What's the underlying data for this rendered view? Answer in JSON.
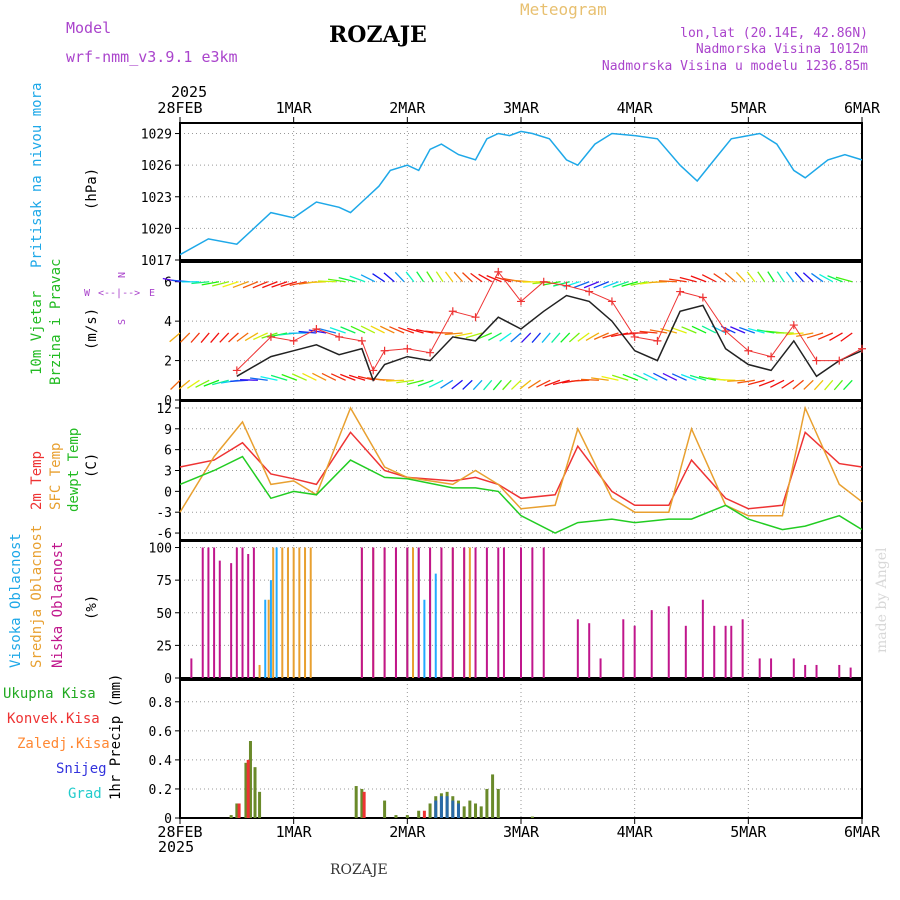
{
  "header": {
    "model_label": "Model",
    "model_name": "wrf-nmm_v3.9.1  e3km",
    "station": "ROZAJE",
    "product": "Meteogram",
    "coords": "lon,lat (20.14E, 42.86N)",
    "elevation": "Nadmorska Visina 1012m",
    "model_elevation": "Nadmorska Visina u modelu 1236.85m",
    "footer_station": "ROZAJE",
    "credit": "made by Angel"
  },
  "colors": {
    "pressure": "#1ea8e8",
    "wind_speed": "#222222",
    "gust": "#ee3333",
    "t2m": "#ee3333",
    "sfc": "#e8a030",
    "dewpt": "#22cc22",
    "cloud_high": "#22aaff",
    "cloud_mid": "#e8a030",
    "cloud_low": "#c0168c",
    "precip_total": "#22aa22",
    "precip_conv": "#ee3333",
    "precip_frz": "#ff8833",
    "precip_snow": "#3333dd",
    "precip_hail": "#22cccc",
    "panel_label_purple": "#aa44cc"
  },
  "time_axis": {
    "year": "2025",
    "labels": [
      "28FEB",
      "1MAR",
      "2MAR",
      "3MAR",
      "4MAR",
      "5MAR",
      "6MAR"
    ],
    "top_year": "2025",
    "top_first": "28FEB",
    "bottom_year": "2025"
  },
  "panels": {
    "pressure": {
      "label": "Pritisak na nivou mora",
      "unit": "(hPa)",
      "ticks": [
        "1017",
        "1020",
        "1023",
        "1026",
        "1029"
      ]
    },
    "wind": {
      "label1": "10m Vjetar",
      "label2": "Brzina i Pravac",
      "unit": "(m/s)",
      "ticks": [
        "0",
        "2",
        "4",
        "6"
      ],
      "compass_w": "W",
      "compass_e": "E",
      "compass_n": "N",
      "compass_s": "S",
      "compass_arrows": "<--|-->"
    },
    "temp": {
      "label1": "2m Temp",
      "label2": "SFC Temp",
      "label3": "dewpt Temp",
      "unit": "(C)",
      "ticks": [
        "-6",
        "-3",
        "0",
        "3",
        "6",
        "9",
        "12"
      ]
    },
    "cloud": {
      "label1": "Visoka Oblacnost",
      "label2": "Srednja Oblacnost",
      "label3": "Niska Oblacnost",
      "unit": "(%)",
      "ticks": [
        "0",
        "25",
        "50",
        "75",
        "100"
      ]
    },
    "precip": {
      "legend": [
        "Ukupna Kisa",
        "Konvek.Kisa",
        "Zaledj.Kisa",
        "Snijeg",
        "Grad"
      ],
      "unit": "1hr Precip (mm)",
      "ticks": [
        "0",
        "0.2",
        "0.4",
        "0.6",
        "0.8"
      ]
    }
  },
  "chart_data": [
    {
      "type": "line",
      "title": "Pritisak na nivou mora",
      "ylabel": "(hPa)",
      "ylim": [
        1017,
        1030
      ],
      "x": [
        0,
        0.25,
        0.5,
        0.7,
        0.8,
        1.0,
        1.2,
        1.4,
        1.5,
        1.6,
        1.75,
        1.85,
        2.0,
        2.1,
        2.2,
        2.3,
        2.45,
        2.6,
        2.7,
        2.8,
        2.9,
        3.0,
        3.1,
        3.25,
        3.4,
        3.5,
        3.65,
        3.8,
        4.0,
        4.2,
        4.4,
        4.55,
        4.7,
        4.85,
        5.0,
        5.1,
        5.25,
        5.4,
        5.5,
        5.7,
        5.85,
        6.0
      ],
      "values": [
        1017.5,
        1019.0,
        1018.5,
        1020.5,
        1021.5,
        1021.0,
        1022.5,
        1022.0,
        1021.5,
        1022.5,
        1024.0,
        1025.5,
        1026.0,
        1025.5,
        1027.5,
        1028.0,
        1027.0,
        1026.5,
        1028.5,
        1029.0,
        1028.8,
        1029.2,
        1029.0,
        1028.5,
        1026.5,
        1026.0,
        1028.0,
        1029.0,
        1028.8,
        1028.5,
        1026.0,
        1024.5,
        1026.5,
        1028.5,
        1028.8,
        1029.0,
        1028.0,
        1025.5,
        1024.8,
        1026.5,
        1027.0,
        1026.5
      ]
    },
    {
      "type": "line",
      "title": "10m Vjetar Brzina i Pravac",
      "ylabel": "(m/s)",
      "ylim": [
        0,
        7
      ],
      "series": [
        {
          "name": "Brzina",
          "x": [
            0.5,
            0.8,
            1.0,
            1.2,
            1.4,
            1.6,
            1.7,
            1.8,
            2.0,
            2.2,
            2.4,
            2.6,
            2.8,
            3.0,
            3.2,
            3.4,
            3.6,
            3.8,
            4.0,
            4.2,
            4.4,
            4.6,
            4.8,
            5.0,
            5.2,
            5.4,
            5.6,
            5.8,
            6.0
          ],
          "values": [
            1.2,
            2.2,
            2.5,
            2.8,
            2.3,
            2.6,
            1.0,
            1.8,
            2.2,
            2.0,
            3.2,
            3.0,
            4.2,
            3.6,
            4.5,
            5.3,
            5.0,
            4.0,
            2.5,
            2.0,
            4.5,
            4.8,
            2.6,
            1.8,
            1.5,
            3.0,
            1.2,
            2.0,
            2.5
          ]
        },
        {
          "name": "Udari",
          "x": [
            0.5,
            0.8,
            1.0,
            1.2,
            1.4,
            1.6,
            1.7,
            1.8,
            2.0,
            2.2,
            2.4,
            2.6,
            2.8,
            3.0,
            3.2,
            3.4,
            3.6,
            3.8,
            4.0,
            4.2,
            4.4,
            4.6,
            4.8,
            5.0,
            5.2,
            5.4,
            5.6,
            5.8,
            6.0
          ],
          "values": [
            1.5,
            3.2,
            3.0,
            3.6,
            3.2,
            3.0,
            1.5,
            2.5,
            2.6,
            2.4,
            4.5,
            4.2,
            6.5,
            5.0,
            6.0,
            5.8,
            5.5,
            5.0,
            3.2,
            3.0,
            5.5,
            5.2,
            3.5,
            2.5,
            2.2,
            3.8,
            2.0,
            2.0,
            2.6
          ]
        }
      ]
    },
    {
      "type": "line",
      "title": "2m Temp / SFC Temp / dewpt Temp",
      "ylabel": "(C)",
      "ylim": [
        -7,
        13
      ],
      "x": [
        0,
        0.3,
        0.55,
        0.8,
        1.0,
        1.2,
        1.5,
        1.8,
        2.0,
        2.4,
        2.6,
        2.8,
        3.0,
        3.3,
        3.5,
        3.8,
        4.0,
        4.3,
        4.5,
        4.8,
        5.0,
        5.3,
        5.5,
        5.8,
        6.0
      ],
      "series": [
        {
          "name": "2m Temp",
          "values": [
            3.5,
            4.5,
            7.0,
            2.5,
            1.8,
            1.0,
            8.5,
            3.0,
            2.0,
            1.5,
            2.0,
            1.0,
            -1.0,
            -0.5,
            6.5,
            0.0,
            -2.0,
            -2.0,
            4.5,
            -1.0,
            -2.5,
            -2.0,
            8.5,
            4.0,
            3.5
          ]
        },
        {
          "name": "SFC Temp",
          "values": [
            -3.0,
            5.0,
            10.0,
            1.0,
            1.5,
            -0.5,
            12.0,
            3.5,
            2.0,
            1.0,
            3.0,
            1.0,
            -2.5,
            -2.0,
            9.0,
            -1.0,
            -3.0,
            -3.0,
            9.0,
            -2.0,
            -3.5,
            -3.5,
            12.0,
            1.0,
            -1.5
          ]
        },
        {
          "name": "dewpt Temp",
          "values": [
            1.0,
            3.0,
            5.0,
            -1.0,
            0.0,
            -0.5,
            4.5,
            2.0,
            1.8,
            0.5,
            0.5,
            0.0,
            -3.5,
            -6.0,
            -4.5,
            -4.0,
            -4.5,
            -4.0,
            -4.0,
            -2.0,
            -4.0,
            -5.5,
            -5.0,
            -3.5,
            -5.5
          ]
        }
      ]
    },
    {
      "type": "bar",
      "title": "Oblacnost",
      "ylabel": "(%)",
      "ylim": [
        0,
        100
      ],
      "series": [
        {
          "name": "Visoka Oblacnost",
          "x": [
            0.75,
            0.8,
            0.85,
            0.95,
            2.0,
            2.1,
            2.15,
            2.2,
            2.25
          ],
          "values": [
            60,
            75,
            100,
            100,
            100,
            100,
            60,
            75,
            80
          ]
        },
        {
          "name": "Srednja Oblacnost",
          "x": [
            0.7,
            0.78,
            0.82,
            0.9,
            0.95,
            1.0,
            1.05,
            1.1,
            1.15,
            1.6,
            1.7,
            1.8,
            1.9,
            2.0,
            2.05,
            2.2,
            2.3,
            2.4,
            2.5,
            2.55,
            2.6
          ],
          "values": [
            10,
            60,
            100,
            100,
            100,
            100,
            100,
            100,
            100,
            100,
            100,
            100,
            100,
            100,
            100,
            100,
            100,
            100,
            100,
            100,
            50
          ]
        },
        {
          "name": "Niska Oblacnost",
          "x": [
            0.1,
            0.2,
            0.25,
            0.3,
            0.35,
            0.45,
            0.5,
            0.55,
            0.6,
            0.65,
            1.6,
            1.7,
            1.8,
            1.9,
            2.0,
            2.1,
            2.2,
            2.3,
            2.4,
            2.5,
            2.6,
            2.7,
            2.8,
            2.85,
            3.0,
            3.1,
            3.2,
            3.5,
            3.6,
            3.7,
            3.9,
            4.0,
            4.15,
            4.3,
            4.45,
            4.6,
            4.7,
            4.8,
            4.85,
            4.95,
            5.1,
            5.2,
            5.4,
            5.5,
            5.6,
            5.8,
            5.9
          ],
          "values": [
            15,
            100,
            100,
            100,
            90,
            88,
            100,
            100,
            95,
            100,
            100,
            100,
            100,
            100,
            100,
            100,
            100,
            100,
            100,
            100,
            100,
            100,
            100,
            100,
            100,
            100,
            100,
            45,
            42,
            15,
            45,
            40,
            52,
            55,
            40,
            60,
            40,
            40,
            40,
            45,
            15,
            15,
            15,
            10,
            10,
            10,
            8
          ]
        }
      ]
    },
    {
      "type": "bar",
      "title": "1hr Precip",
      "ylabel": "1hr Precip (mm)",
      "ylim": [
        0,
        0.95
      ],
      "series": [
        {
          "name": "Ukupna Kisa",
          "x": [
            0.45,
            0.5,
            0.58,
            0.62,
            0.66,
            0.7,
            1.55,
            1.6,
            1.8,
            1.9,
            2.0,
            2.1,
            2.2,
            2.25,
            2.3,
            2.35,
            2.4,
            2.45,
            2.5,
            2.55,
            2.6,
            2.65,
            2.7,
            2.75,
            2.8,
            3.1
          ],
          "values": [
            0.02,
            0.1,
            0.38,
            0.53,
            0.35,
            0.18,
            0.22,
            0.2,
            0.12,
            0.02,
            0.02,
            0.05,
            0.1,
            0.15,
            0.17,
            0.18,
            0.15,
            0.12,
            0.08,
            0.12,
            0.1,
            0.08,
            0.2,
            0.3,
            0.2,
            0.01
          ]
        },
        {
          "name": "Konvek.Kisa",
          "x": [
            0.52,
            0.6,
            1.62,
            2.15
          ],
          "values": [
            0.1,
            0.4,
            0.18,
            0.05
          ]
        },
        {
          "name": "Snijeg",
          "x": [
            2.25,
            2.3,
            2.35,
            2.4,
            2.45
          ],
          "values": [
            0.12,
            0.15,
            0.15,
            0.12,
            0.1
          ]
        }
      ]
    }
  ]
}
